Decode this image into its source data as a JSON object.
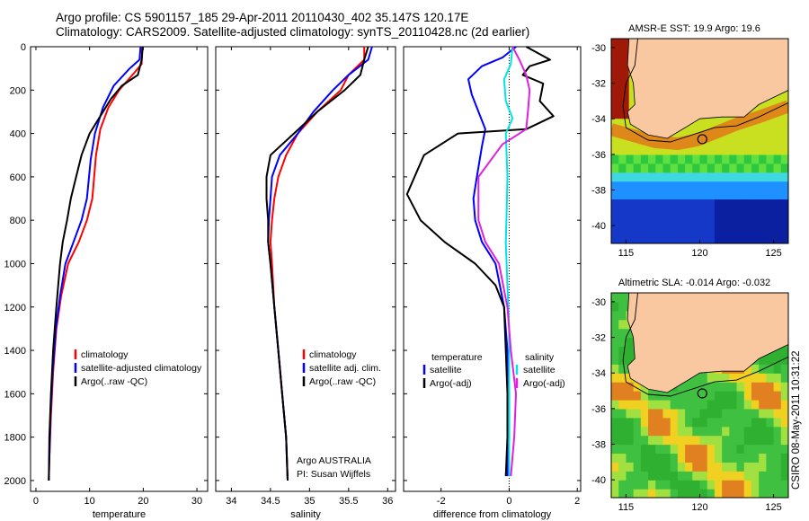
{
  "header": {
    "line1": "Argo profile: CS 5901157_185 29-Apr-2011 20110430_402 35.147S 120.17E",
    "line2": "Climatology: CARS2009. Satellite-adjusted climatology: synTS_20110428.nc (2d earlier)"
  },
  "stamp": "CSIRO 08-May-2011 10:31:22",
  "colors": {
    "climatology": "#ff0000",
    "satellite": "#0000ff",
    "argo": "#000000",
    "sal_sat": "#00e5e5",
    "sal_argo": "#e020e0"
  },
  "chart_data": [
    {
      "type": "line",
      "name": "temperature-panel",
      "xlabel": "temperature",
      "xlim": [
        -1,
        32
      ],
      "ylim": [
        0,
        2050
      ],
      "xticks": [
        "0",
        "10",
        "20",
        "30"
      ],
      "xtick_values": [
        0,
        10,
        20,
        30
      ],
      "yticks": [
        "0",
        "200",
        "400",
        "600",
        "800",
        "1000",
        "1200",
        "1400",
        "1600",
        "1800",
        "2000"
      ],
      "ytick_values": [
        0,
        200,
        400,
        600,
        800,
        1000,
        1200,
        1400,
        1600,
        1800,
        2000
      ],
      "legend": [
        "climatology",
        "satellite-adjusted climatology",
        "Argo(..raw -QC)"
      ],
      "series": [
        {
          "name": "climatology",
          "color": "red",
          "points": [
            [
              19.8,
              0
            ],
            [
              19.7,
              80
            ],
            [
              18,
              130
            ],
            [
              15.5,
              200
            ],
            [
              13.5,
              280
            ],
            [
              12,
              380
            ],
            [
              11.2,
              500
            ],
            [
              10.5,
              700
            ],
            [
              9.5,
              800
            ],
            [
              8,
              900
            ],
            [
              6,
              1000
            ],
            [
              4.7,
              1150
            ],
            [
              3.8,
              1300
            ],
            [
              3.2,
              1500
            ],
            [
              2.8,
              1700
            ],
            [
              2.5,
              1900
            ],
            [
              2.4,
              2000
            ]
          ]
        },
        {
          "name": "satellite-adjusted climatology",
          "color": "blue",
          "points": [
            [
              19.5,
              0
            ],
            [
              19.3,
              60
            ],
            [
              17.5,
              100
            ],
            [
              14.5,
              180
            ],
            [
              12.5,
              280
            ],
            [
              11,
              400
            ],
            [
              10.2,
              520
            ],
            [
              9.5,
              700
            ],
            [
              8.5,
              800
            ],
            [
              7,
              900
            ],
            [
              5.5,
              1000
            ],
            [
              4.5,
              1150
            ],
            [
              3.7,
              1300
            ],
            [
              3.1,
              1500
            ],
            [
              2.7,
              1700
            ],
            [
              2.5,
              1900
            ],
            [
              2.4,
              2000
            ]
          ]
        },
        {
          "name": "Argo(..raw -QC)",
          "color": "black",
          "points": [
            [
              19.9,
              0
            ],
            [
              19.7,
              60
            ],
            [
              19,
              130
            ],
            [
              16,
              180
            ],
            [
              14,
              240
            ],
            [
              12,
              320
            ],
            [
              10,
              400
            ],
            [
              8.5,
              500
            ],
            [
              7.5,
              600
            ],
            [
              6.5,
              700
            ],
            [
              5.8,
              800
            ],
            [
              5,
              900
            ],
            [
              4.5,
              1000
            ],
            [
              3.8,
              1200
            ],
            [
              3.2,
              1400
            ],
            [
              2.8,
              1600
            ],
            [
              2.5,
              1800
            ],
            [
              2.4,
              2000
            ]
          ]
        }
      ]
    },
    {
      "type": "line",
      "name": "salinity-panel",
      "xlabel": "salinity",
      "xlim": [
        33.8,
        36.1
      ],
      "ylim": [
        0,
        2050
      ],
      "xticks": [
        "34",
        "34.5",
        "35",
        "35.5",
        "36"
      ],
      "xtick_values": [
        34,
        34.5,
        35,
        35.5,
        36
      ],
      "legend": [
        "climatology",
        "satellite adj. clim.",
        "Argo(..raw -QC)"
      ],
      "annotation": [
        "Argo AUSTRALIA",
        "PI: Susan Wijffels"
      ],
      "series": [
        {
          "name": "climatology",
          "color": "red",
          "points": [
            [
              35.7,
              0
            ],
            [
              35.7,
              60
            ],
            [
              35.5,
              130
            ],
            [
              35.4,
              200
            ],
            [
              35.1,
              300
            ],
            [
              34.85,
              400
            ],
            [
              34.7,
              500
            ],
            [
              34.6,
              600
            ],
            [
              34.55,
              700
            ],
            [
              34.52,
              800
            ],
            [
              34.5,
              900
            ],
            [
              34.52,
              1000
            ],
            [
              34.55,
              1200
            ],
            [
              34.6,
              1400
            ],
            [
              34.65,
              1600
            ],
            [
              34.7,
              1800
            ],
            [
              34.72,
              2000
            ]
          ]
        },
        {
          "name": "satellite adj. clim.",
          "color": "blue",
          "points": [
            [
              35.8,
              0
            ],
            [
              35.75,
              60
            ],
            [
              35.5,
              130
            ],
            [
              35.3,
              200
            ],
            [
              35.05,
              300
            ],
            [
              34.85,
              400
            ],
            [
              34.62,
              500
            ],
            [
              34.52,
              600
            ],
            [
              34.5,
              700
            ],
            [
              34.48,
              800
            ],
            [
              34.47,
              900
            ],
            [
              34.5,
              1000
            ],
            [
              34.55,
              1200
            ],
            [
              34.6,
              1400
            ],
            [
              34.65,
              1600
            ],
            [
              34.7,
              1800
            ],
            [
              34.72,
              2000
            ]
          ]
        },
        {
          "name": "Argo(..raw -QC)",
          "color": "black",
          "points": [
            [
              35.75,
              0
            ],
            [
              35.7,
              60
            ],
            [
              35.65,
              130
            ],
            [
              35.45,
              200
            ],
            [
              35.1,
              300
            ],
            [
              34.8,
              400
            ],
            [
              34.5,
              500
            ],
            [
              34.45,
              600
            ],
            [
              34.45,
              700
            ],
            [
              34.47,
              800
            ],
            [
              34.47,
              900
            ],
            [
              34.5,
              1000
            ],
            [
              34.55,
              1200
            ],
            [
              34.6,
              1400
            ],
            [
              34.65,
              1600
            ],
            [
              34.7,
              1800
            ],
            [
              34.72,
              2000
            ]
          ]
        }
      ]
    },
    {
      "type": "line",
      "name": "difference-panel",
      "xlabel": "difference from climatology",
      "xlim": [
        -3.1,
        2.1
      ],
      "ylim": [
        0,
        2050
      ],
      "xticks": [
        "-2",
        "0",
        "2"
      ],
      "xtick_values": [
        -2,
        0,
        2
      ],
      "legend": [
        "temperature",
        "satellite",
        "Argo(-adj)",
        "salinity",
        "satellite",
        "Argo(-adj)"
      ],
      "series": [
        {
          "name": "temperature satellite",
          "color": "blue",
          "points": [
            [
              0.2,
              0
            ],
            [
              -0.2,
              50
            ],
            [
              -0.8,
              90
            ],
            [
              -1.2,
              150
            ],
            [
              -1.1,
              220
            ],
            [
              -0.9,
              300
            ],
            [
              -0.7,
              380
            ],
            [
              -0.8,
              460
            ],
            [
              -0.95,
              600
            ],
            [
              -1.05,
              700
            ],
            [
              -1.0,
              800
            ],
            [
              -0.8,
              900
            ],
            [
              -0.4,
              1000
            ],
            [
              -0.15,
              1200
            ],
            [
              -0.05,
              1400
            ],
            [
              0,
              1600
            ],
            [
              0,
              1800
            ],
            [
              -0.05,
              1980
            ]
          ]
        },
        {
          "name": "temperature Argo(-adj)",
          "color": "black",
          "points": [
            [
              0.5,
              0
            ],
            [
              1.2,
              60
            ],
            [
              0.6,
              90
            ],
            [
              0.4,
              130
            ],
            [
              1.0,
              170
            ],
            [
              0.9,
              250
            ],
            [
              1.3,
              320
            ],
            [
              0.5,
              380
            ],
            [
              -1.5,
              400
            ],
            [
              -2.5,
              500
            ],
            [
              -3.0,
              680
            ],
            [
              -2.6,
              800
            ],
            [
              -1.9,
              900
            ],
            [
              -1.0,
              1000
            ],
            [
              -0.4,
              1100
            ],
            [
              -0.15,
              1200
            ],
            [
              -0.1,
              1400
            ],
            [
              -0.05,
              1600
            ],
            [
              -0.05,
              1800
            ],
            [
              -0.1,
              1980
            ]
          ]
        },
        {
          "name": "salinity satellite",
          "color": "cyan",
          "points": [
            [
              0.1,
              0
            ],
            [
              0.05,
              80
            ],
            [
              -0.15,
              150
            ],
            [
              -0.1,
              250
            ],
            [
              0.1,
              330
            ],
            [
              -0.1,
              400
            ],
            [
              -0.05,
              600
            ],
            [
              -0.08,
              800
            ],
            [
              -0.1,
              900
            ],
            [
              -0.05,
              1100
            ],
            [
              0,
              1300
            ],
            [
              0,
              1600
            ],
            [
              0,
              1800
            ],
            [
              0,
              1980
            ]
          ]
        },
        {
          "name": "salinity Argo(-adj)",
          "color": "magenta",
          "points": [
            [
              0.1,
              0
            ],
            [
              0.3,
              60
            ],
            [
              0.5,
              130
            ],
            [
              0.6,
              200
            ],
            [
              0.55,
              300
            ],
            [
              0.5,
              380
            ],
            [
              -0.2,
              450
            ],
            [
              -0.9,
              600
            ],
            [
              -0.9,
              800
            ],
            [
              -0.7,
              900
            ],
            [
              -0.3,
              1000
            ],
            [
              -0.05,
              1200
            ],
            [
              0.05,
              1400
            ],
            [
              0.2,
              1600
            ],
            [
              0.15,
              1800
            ],
            [
              0.05,
              1980
            ]
          ]
        }
      ]
    },
    {
      "type": "heatmap",
      "name": "amsr-sst-map",
      "title": "AMSR-E SST: 19.9 Argo: 19.6",
      "xlim": [
        114,
        126
      ],
      "ylim": [
        -41,
        -29.5
      ],
      "xticks": [
        "115",
        "120",
        "125"
      ],
      "xtick_values": [
        115,
        120,
        125
      ],
      "yticks": [
        "-30",
        "-32",
        "-34",
        "-36",
        "-38",
        "-40"
      ],
      "ytick_values": [
        -30,
        -32,
        -34,
        -36,
        -38,
        -40
      ],
      "marker": [
        120.17,
        -35.147
      ]
    },
    {
      "type": "heatmap",
      "name": "altimetric-sla-map",
      "title": "Altimetric SLA: -0.014 Argo: -0.032",
      "xlim": [
        114,
        126
      ],
      "ylim": [
        -41,
        -29.5
      ],
      "xticks": [
        "115",
        "120",
        "125"
      ],
      "xtick_values": [
        115,
        120,
        125
      ],
      "yticks": [
        "-30",
        "-32",
        "-34",
        "-36",
        "-38",
        "-40"
      ],
      "ytick_values": [
        -30,
        -32,
        -34,
        -36,
        -38,
        -40
      ],
      "marker": [
        120.17,
        -35.147
      ]
    }
  ]
}
